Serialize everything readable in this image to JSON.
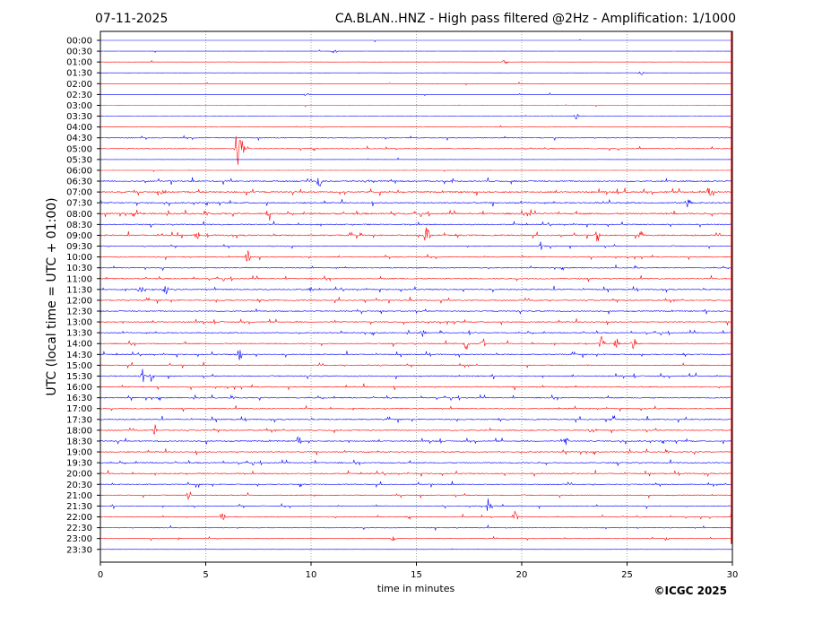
{
  "chart_data": {
    "type": "line",
    "title_left": "07-11-2025",
    "title_right": "CA.BLAN..HNZ - High pass filtered @2Hz - Amplification: 1/1000",
    "xlabel": "time in minutes",
    "ylabel": "UTC (local time = UTC + 01:00)",
    "copyright": "©ICGC 2025",
    "xlim": [
      0,
      30
    ],
    "x_ticks": [
      0,
      5,
      10,
      15,
      20,
      25,
      30
    ],
    "x_tick_labels": [
      "0",
      "5",
      "10",
      "15",
      "20",
      "25",
      "30"
    ],
    "grid": "vertical dotted at 5-minute intervals",
    "series_colors": [
      "#ff0000",
      "#0000ff"
    ],
    "row_labels": [
      "00:00",
      "00:30",
      "01:00",
      "01:30",
      "02:00",
      "02:30",
      "03:00",
      "03:30",
      "04:00",
      "04:30",
      "05:00",
      "05:30",
      "06:00",
      "06:30",
      "07:00",
      "07:30",
      "08:00",
      "08:30",
      "09:00",
      "09:30",
      "10:00",
      "10:30",
      "11:00",
      "11:30",
      "12:00",
      "12:30",
      "13:00",
      "13:30",
      "14:00",
      "14:30",
      "15:00",
      "15:30",
      "16:00",
      "16:30",
      "17:00",
      "17:30",
      "18:00",
      "18:30",
      "19:00",
      "19:30",
      "20:00",
      "20:30",
      "21:00",
      "21:30",
      "22:00",
      "22:30",
      "23:00",
      "23:30"
    ],
    "row_colors": [
      "#0000ff",
      "#0000ff",
      "#ff0000",
      "#0000ff",
      "#ff0000",
      "#0000ff",
      "#ff0000",
      "#0000ff",
      "#ff0000",
      "#0000ff",
      "#ff0000",
      "#0000ff",
      "#ff0000",
      "#0000ff",
      "#ff0000",
      "#0000ff",
      "#ff0000",
      "#0000ff",
      "#ff0000",
      "#0000ff",
      "#ff0000",
      "#0000ff",
      "#ff0000",
      "#0000ff",
      "#ff0000",
      "#0000ff",
      "#ff0000",
      "#0000ff",
      "#ff0000",
      "#0000ff",
      "#ff0000",
      "#0000ff",
      "#ff0000",
      "#0000ff",
      "#ff0000",
      "#0000ff",
      "#ff0000",
      "#0000ff",
      "#ff0000",
      "#0000ff",
      "#ff0000",
      "#0000ff",
      "#ff0000",
      "#0000ff",
      "#ff0000",
      "#0000ff",
      "#ff0000",
      "#0000ff"
    ],
    "row_noise": [
      0.05,
      0.05,
      0.05,
      0.05,
      0.05,
      0.05,
      0.05,
      0.05,
      0.15,
      0.3,
      0.3,
      0.05,
      0.05,
      0.6,
      0.7,
      0.6,
      0.7,
      0.5,
      0.6,
      0.4,
      0.4,
      0.4,
      0.5,
      0.5,
      0.5,
      0.5,
      0.5,
      0.45,
      0.5,
      0.5,
      0.45,
      0.5,
      0.5,
      0.5,
      0.45,
      0.5,
      0.5,
      0.55,
      0.5,
      0.5,
      0.5,
      0.45,
      0.4,
      0.35,
      0.35,
      0.3,
      0.2,
      0.05
    ],
    "events": [
      {
        "row": 1,
        "t": 11.1,
        "amp": 3
      },
      {
        "row": 2,
        "t": 19.2,
        "amp": 3
      },
      {
        "row": 3,
        "t": 25.7,
        "amp": 4
      },
      {
        "row": 5,
        "t": 9.8,
        "amp": 3
      },
      {
        "row": 7,
        "t": 22.6,
        "amp": 4
      },
      {
        "row": 10,
        "t": 6.5,
        "amp": 25
      },
      {
        "row": 10,
        "t": 6.7,
        "amp": 20
      },
      {
        "row": 13,
        "t": 10.4,
        "amp": 8
      },
      {
        "row": 14,
        "t": 3.0,
        "amp": 5
      },
      {
        "row": 14,
        "t": 28.9,
        "amp": 6
      },
      {
        "row": 15,
        "t": 27.9,
        "amp": 6
      },
      {
        "row": 16,
        "t": 8.0,
        "amp": 9
      },
      {
        "row": 18,
        "t": 4.6,
        "amp": 6
      },
      {
        "row": 18,
        "t": 15.5,
        "amp": 14
      },
      {
        "row": 18,
        "t": 23.6,
        "amp": 8
      },
      {
        "row": 18,
        "t": 25.7,
        "amp": 6
      },
      {
        "row": 19,
        "t": 20.9,
        "amp": 5
      },
      {
        "row": 20,
        "t": 7.0,
        "amp": 8
      },
      {
        "row": 23,
        "t": 1.9,
        "amp": 7
      },
      {
        "row": 23,
        "t": 3.1,
        "amp": 8
      },
      {
        "row": 23,
        "t": 10.0,
        "amp": 4
      },
      {
        "row": 27,
        "t": 15.3,
        "amp": 4
      },
      {
        "row": 28,
        "t": 17.4,
        "amp": 9
      },
      {
        "row": 28,
        "t": 18.2,
        "amp": 6
      },
      {
        "row": 28,
        "t": 23.8,
        "amp": 10
      },
      {
        "row": 28,
        "t": 24.5,
        "amp": 8
      },
      {
        "row": 28,
        "t": 25.3,
        "amp": 10
      },
      {
        "row": 29,
        "t": 6.6,
        "amp": 9
      },
      {
        "row": 31,
        "t": 2.0,
        "amp": 8
      },
      {
        "row": 31,
        "t": 2.4,
        "amp": 6
      },
      {
        "row": 35,
        "t": 24.3,
        "amp": 5
      },
      {
        "row": 36,
        "t": 2.6,
        "amp": 6
      },
      {
        "row": 36,
        "t": 23.3,
        "amp": 4
      },
      {
        "row": 37,
        "t": 9.4,
        "amp": 6
      },
      {
        "row": 37,
        "t": 22.1,
        "amp": 5
      },
      {
        "row": 42,
        "t": 4.2,
        "amp": 6
      },
      {
        "row": 43,
        "t": 18.4,
        "amp": 9
      },
      {
        "row": 44,
        "t": 5.8,
        "amp": 7
      },
      {
        "row": 44,
        "t": 19.7,
        "amp": 8
      },
      {
        "row": 46,
        "t": 13.9,
        "amp": 3
      },
      {
        "row": 46,
        "t": 26.9,
        "amp": 3
      }
    ]
  }
}
